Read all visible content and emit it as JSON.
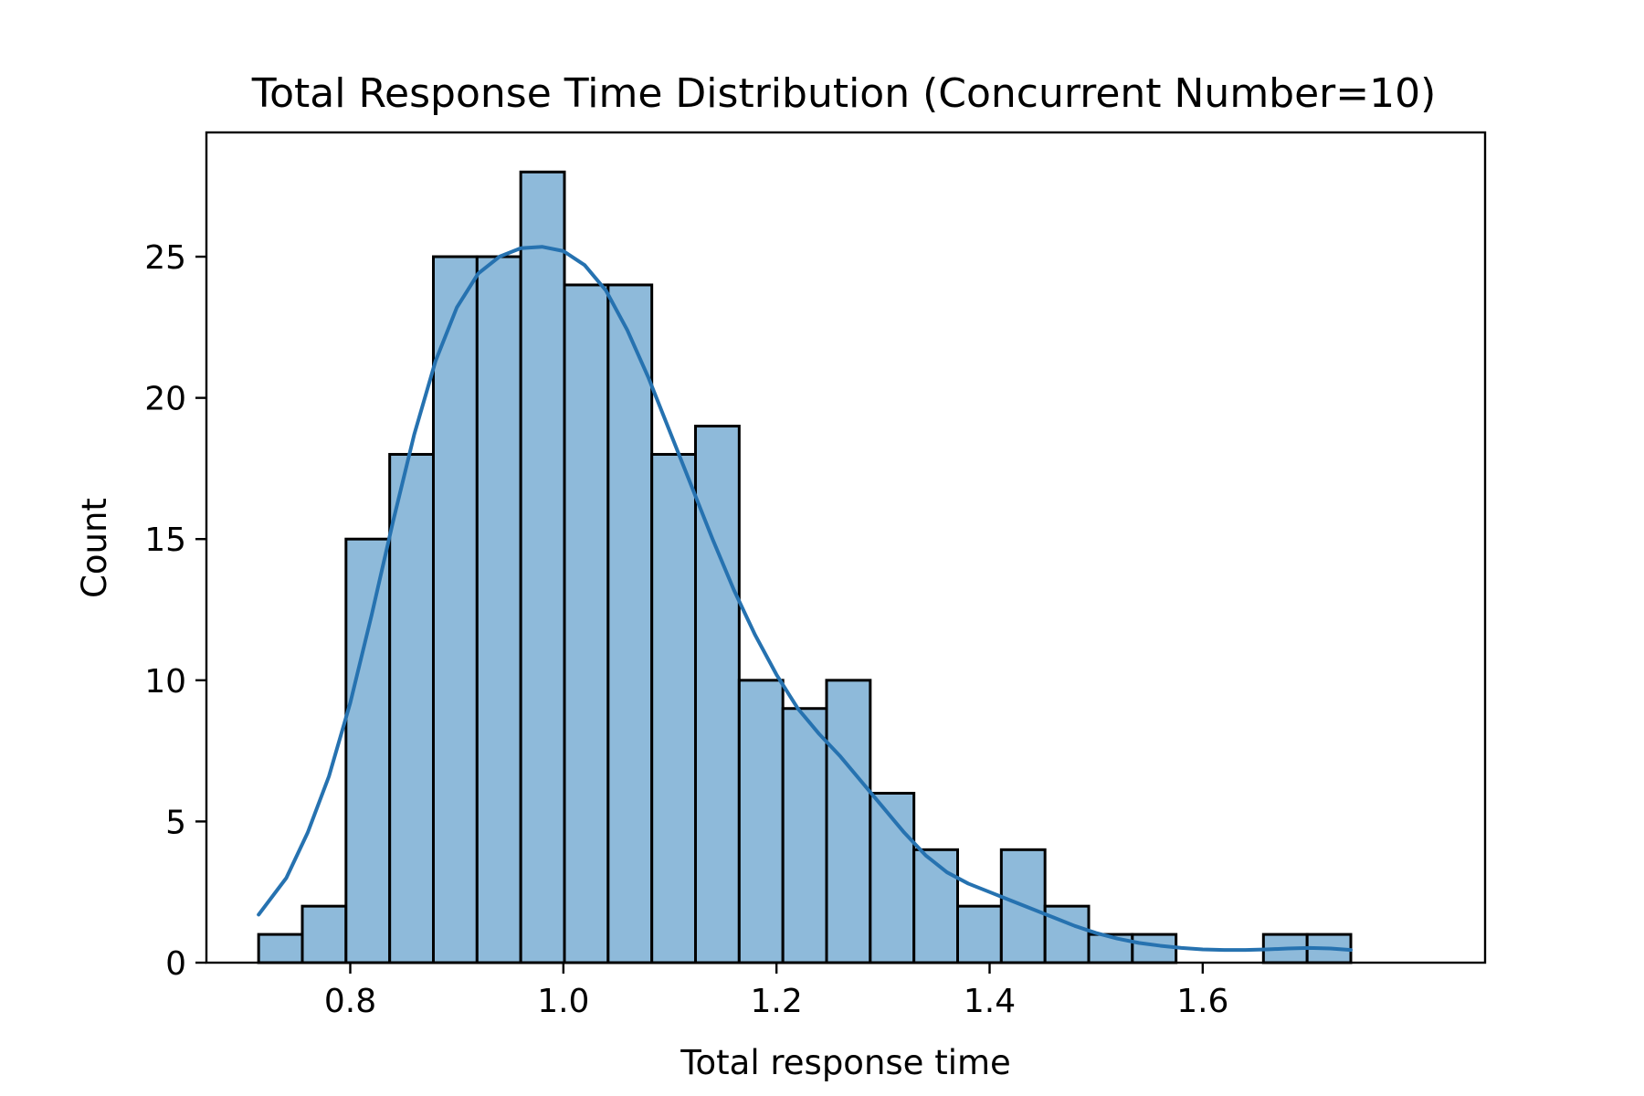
{
  "chart_data": {
    "type": "bar",
    "subtype": "histogram-with-kde",
    "title": "Total Response Time Distribution (Concurrent Number=10)",
    "xlabel": "Total response time",
    "ylabel": "Count",
    "xlim": [
      0.665,
      1.865
    ],
    "ylim": [
      0,
      29.4
    ],
    "xticks": [
      0.8,
      1.0,
      1.2,
      1.4,
      1.6
    ],
    "xtick_labels": [
      "0.8",
      "1.0",
      "1.2",
      "1.4",
      "1.6"
    ],
    "yticks": [
      0,
      5,
      10,
      15,
      20,
      25
    ],
    "ytick_labels": [
      "0",
      "5",
      "10",
      "15",
      "20",
      "25"
    ],
    "grid": false,
    "legend": "none",
    "bin_width": 0.041,
    "bins": [
      {
        "x0": 0.714,
        "count": 1
      },
      {
        "x0": 0.755,
        "count": 2
      },
      {
        "x0": 0.796,
        "count": 15
      },
      {
        "x0": 0.837,
        "count": 18
      },
      {
        "x0": 0.878,
        "count": 25
      },
      {
        "x0": 0.919,
        "count": 25
      },
      {
        "x0": 0.96,
        "count": 28
      },
      {
        "x0": 1.001,
        "count": 24
      },
      {
        "x0": 1.042,
        "count": 24
      },
      {
        "x0": 1.083,
        "count": 18
      },
      {
        "x0": 1.124,
        "count": 19
      },
      {
        "x0": 1.165,
        "count": 10
      },
      {
        "x0": 1.206,
        "count": 9
      },
      {
        "x0": 1.247,
        "count": 10
      },
      {
        "x0": 1.288,
        "count": 6
      },
      {
        "x0": 1.329,
        "count": 4
      },
      {
        "x0": 1.37,
        "count": 2
      },
      {
        "x0": 1.411,
        "count": 4
      },
      {
        "x0": 1.452,
        "count": 2
      },
      {
        "x0": 1.493,
        "count": 1
      },
      {
        "x0": 1.534,
        "count": 1
      },
      {
        "x0": 1.575,
        "count": 0
      },
      {
        "x0": 1.616,
        "count": 0
      },
      {
        "x0": 1.657,
        "count": 1
      },
      {
        "x0": 1.698,
        "count": 1
      }
    ],
    "kde": {
      "x": [
        0.714,
        0.74,
        0.76,
        0.78,
        0.8,
        0.82,
        0.84,
        0.86,
        0.88,
        0.9,
        0.92,
        0.94,
        0.96,
        0.98,
        1.0,
        1.02,
        1.04,
        1.06,
        1.08,
        1.1,
        1.12,
        1.14,
        1.16,
        1.18,
        1.2,
        1.22,
        1.24,
        1.26,
        1.28,
        1.3,
        1.32,
        1.34,
        1.36,
        1.38,
        1.4,
        1.42,
        1.44,
        1.46,
        1.48,
        1.5,
        1.52,
        1.54,
        1.56,
        1.58,
        1.6,
        1.62,
        1.64,
        1.66,
        1.68,
        1.7,
        1.72,
        1.739
      ],
      "y": [
        1.7,
        3.0,
        4.6,
        6.6,
        9.2,
        12.3,
        15.6,
        18.7,
        21.3,
        23.2,
        24.4,
        25.0,
        25.3,
        25.35,
        25.2,
        24.7,
        23.8,
        22.4,
        20.7,
        18.8,
        16.9,
        15.0,
        13.2,
        11.6,
        10.2,
        9.0,
        8.1,
        7.3,
        6.4,
        5.5,
        4.6,
        3.8,
        3.2,
        2.8,
        2.5,
        2.2,
        1.9,
        1.6,
        1.3,
        1.05,
        0.85,
        0.7,
        0.6,
        0.52,
        0.47,
        0.45,
        0.45,
        0.47,
        0.5,
        0.52,
        0.5,
        0.45
      ]
    },
    "colors": {
      "bar_fill": "#8ebada",
      "bar_edge": "#000000",
      "kde_line": "#2672b0"
    }
  }
}
